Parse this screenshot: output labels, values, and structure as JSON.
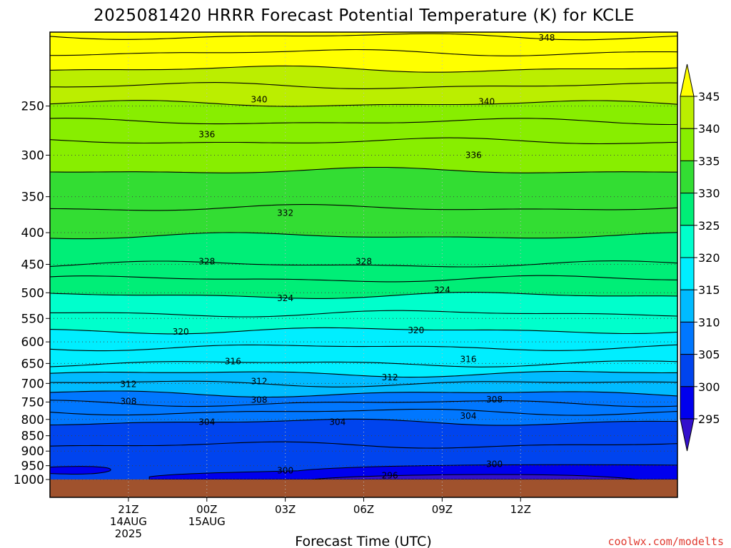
{
  "chart_data": {
    "type": "contour",
    "title": "2025081420 HRRR Forecast Potential Temperature (K) for KCLE",
    "xlabel": "Forecast Time (UTC)",
    "ylabel": "",
    "credit": "coolwx.com/modelts",
    "x_hours": [
      -3,
      21
    ],
    "x_ticks": [
      {
        "hour": 0,
        "lines": [
          "21Z",
          "14AUG",
          "2025"
        ]
      },
      {
        "hour": 3,
        "lines": [
          "00Z",
          "15AUG"
        ]
      },
      {
        "hour": 6,
        "lines": [
          "03Z"
        ]
      },
      {
        "hour": 9,
        "lines": [
          "06Z"
        ]
      },
      {
        "hour": 12,
        "lines": [
          "09Z"
        ]
      },
      {
        "hour": 15,
        "lines": [
          "12Z"
        ]
      }
    ],
    "y_axis": {
      "type": "log-pressure",
      "unit": "hPa",
      "range": [
        1000,
        190
      ],
      "ticks": [
        250,
        300,
        350,
        400,
        450,
        500,
        550,
        600,
        650,
        700,
        750,
        800,
        850,
        900,
        950,
        1000
      ]
    },
    "ground_color": "#a0522d",
    "colorbar": {
      "ticks": [
        345,
        340,
        335,
        330,
        325,
        320,
        315,
        310,
        305,
        300,
        295
      ],
      "bins": [
        {
          "min": 345,
          "max": 350,
          "color": "#ffff00"
        },
        {
          "min": 340,
          "max": 345,
          "color": "#bbee00"
        },
        {
          "min": 335,
          "max": 340,
          "color": "#88ee00"
        },
        {
          "min": 330,
          "max": 335,
          "color": "#33dd33"
        },
        {
          "min": 325,
          "max": 330,
          "color": "#00ee77"
        },
        {
          "min": 320,
          "max": 325,
          "color": "#00ffcc"
        },
        {
          "min": 315,
          "max": 320,
          "color": "#00eeff"
        },
        {
          "min": 310,
          "max": 315,
          "color": "#00bbff"
        },
        {
          "min": 305,
          "max": 310,
          "color": "#0077ff"
        },
        {
          "min": 300,
          "max": 305,
          "color": "#0044ee"
        },
        {
          "min": 295,
          "max": 300,
          "color": "#0000ee"
        },
        {
          "min": 290,
          "max": 295,
          "color": "#3311cc"
        }
      ]
    },
    "isotherms": [
      {
        "value": 348,
        "pressure": 193
      },
      {
        "value": 346,
        "pressure": 205
      },
      {
        "value": 344,
        "pressure": 218
      },
      {
        "value": 342,
        "pressure": 232
      },
      {
        "value": 340,
        "pressure": 248
      },
      {
        "value": 338,
        "pressure": 265
      },
      {
        "value": 336,
        "pressure": 285
      },
      {
        "value": 334,
        "pressure": 318
      },
      {
        "value": 332,
        "pressure": 365
      },
      {
        "value": 330,
        "pressure": 405
      },
      {
        "value": 328,
        "pressure": 450
      },
      {
        "value": 326,
        "pressure": 475
      },
      {
        "value": 324,
        "pressure": 505
      },
      {
        "value": 322,
        "pressure": 540
      },
      {
        "value": 320,
        "pressure": 575
      },
      {
        "value": 318,
        "pressure": 612
      },
      {
        "value": 316,
        "pressure": 650
      },
      {
        "value": 314,
        "pressure": 675
      },
      {
        "value": 312,
        "pressure": 700
      },
      {
        "value": 310,
        "pressure": 727
      },
      {
        "value": 308,
        "pressure": 753
      },
      {
        "value": 306,
        "pressure": 778
      },
      {
        "value": 304,
        "pressure": 808
      },
      {
        "value": 302,
        "pressure": 880
      }
    ],
    "contour_labels": [
      {
        "text": "348",
        "hour": 16,
        "pressure": 194
      },
      {
        "text": "340",
        "hour": 5,
        "pressure": 244
      },
      {
        "text": "340",
        "hour": 13.7,
        "pressure": 246
      },
      {
        "text": "336",
        "hour": 3,
        "pressure": 278
      },
      {
        "text": "336",
        "hour": 13.2,
        "pressure": 300
      },
      {
        "text": "332",
        "hour": 6,
        "pressure": 372
      },
      {
        "text": "328",
        "hour": 3,
        "pressure": 445
      },
      {
        "text": "328",
        "hour": 9,
        "pressure": 445
      },
      {
        "text": "324",
        "hour": 6,
        "pressure": 510
      },
      {
        "text": "324",
        "hour": 12,
        "pressure": 495
      },
      {
        "text": "320",
        "hour": 2,
        "pressure": 578
      },
      {
        "text": "320",
        "hour": 11,
        "pressure": 575
      },
      {
        "text": "316",
        "hour": 4,
        "pressure": 645
      },
      {
        "text": "316",
        "hour": 13,
        "pressure": 640
      },
      {
        "text": "312",
        "hour": 0,
        "pressure": 702
      },
      {
        "text": "312",
        "hour": 5,
        "pressure": 695
      },
      {
        "text": "312",
        "hour": 10,
        "pressure": 685
      },
      {
        "text": "308",
        "hour": 0,
        "pressure": 748
      },
      {
        "text": "308",
        "hour": 5,
        "pressure": 744
      },
      {
        "text": "308",
        "hour": 14,
        "pressure": 743
      },
      {
        "text": "304",
        "hour": 3,
        "pressure": 808
      },
      {
        "text": "304",
        "hour": 8,
        "pressure": 808
      },
      {
        "text": "304",
        "hour": 13,
        "pressure": 790
      },
      {
        "text": "300",
        "hour": 6,
        "pressure": 968
      },
      {
        "text": "300",
        "hour": 14,
        "pressure": 945
      },
      {
        "text": "296",
        "hour": 10,
        "pressure": 986
      }
    ]
  }
}
